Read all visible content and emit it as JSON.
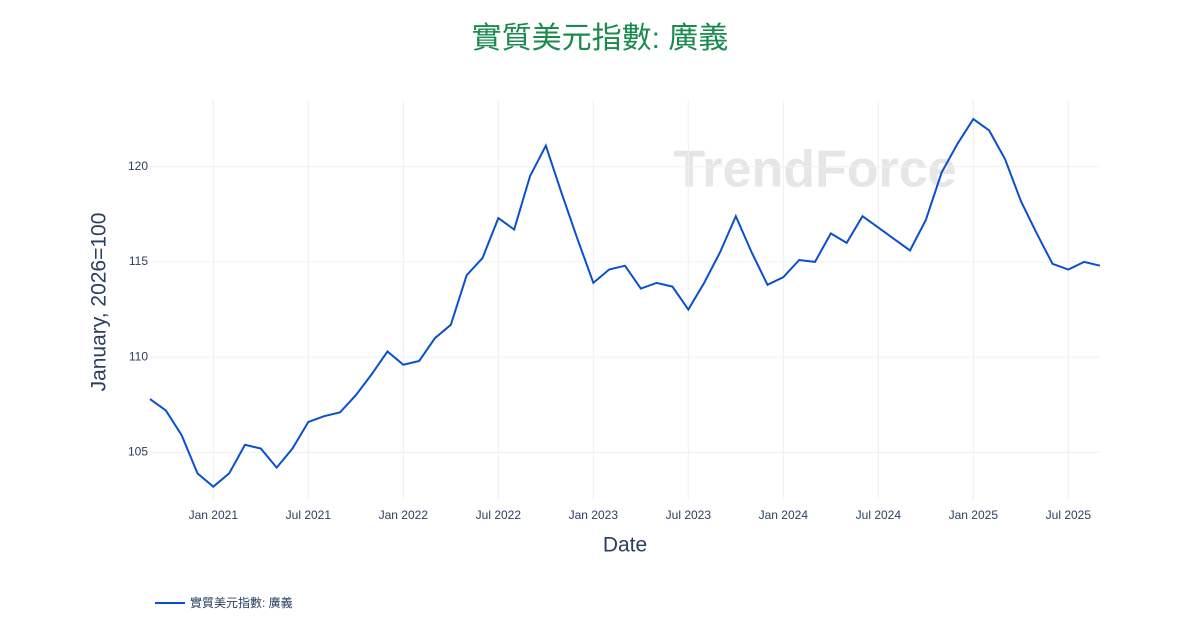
{
  "chart_data": {
    "type": "line",
    "title": "實質美元指數: 廣義",
    "watermark": "TrendForce",
    "x_label": "Date",
    "y_label": "January, 2026=100",
    "x": [
      "2020-09",
      "2020-10",
      "2020-11",
      "2020-12",
      "2021-01",
      "2021-02",
      "2021-03",
      "2021-04",
      "2021-05",
      "2021-06",
      "2021-07",
      "2021-08",
      "2021-09",
      "2021-10",
      "2021-11",
      "2021-12",
      "2022-01",
      "2022-02",
      "2022-03",
      "2022-04",
      "2022-05",
      "2022-06",
      "2022-07",
      "2022-08",
      "2022-09",
      "2022-10",
      "2022-11",
      "2022-12",
      "2023-01",
      "2023-02",
      "2023-03",
      "2023-04",
      "2023-05",
      "2023-06",
      "2023-07",
      "2023-08",
      "2023-09",
      "2023-10",
      "2023-11",
      "2023-12",
      "2024-01",
      "2024-02",
      "2024-03",
      "2024-04",
      "2024-05",
      "2024-06",
      "2024-07",
      "2024-08",
      "2024-09",
      "2024-10",
      "2024-11",
      "2024-12",
      "2025-01",
      "2025-02",
      "2025-03",
      "2025-04",
      "2025-05",
      "2025-06",
      "2025-07",
      "2025-08",
      "2025-09"
    ],
    "series": [
      {
        "name": "實質美元指數: 廣義",
        "color": "#0b4fce",
        "values": [
          107.8,
          107.2,
          105.9,
          103.9,
          103.2,
          103.9,
          105.4,
          105.2,
          104.2,
          105.2,
          106.6,
          106.9,
          107.1,
          108.0,
          109.1,
          110.3,
          109.6,
          109.8,
          111.0,
          111.7,
          114.3,
          115.2,
          117.3,
          116.7,
          119.5,
          121.1,
          118.6,
          116.2,
          113.9,
          114.6,
          114.8,
          113.6,
          113.9,
          113.7,
          112.5,
          113.9,
          115.5,
          117.4,
          115.5,
          113.8,
          114.2,
          115.1,
          115.0,
          116.5,
          116.0,
          117.4,
          116.8,
          116.2,
          115.6,
          117.2,
          119.7,
          121.2,
          122.5,
          121.9,
          120.4,
          118.2,
          116.5,
          114.9,
          114.6,
          115.0,
          114.8
        ]
      }
    ],
    "xlim": [
      "2020-09",
      "2025-09"
    ],
    "xticks": [
      {
        "value": "2021-01",
        "label": "Jan 2021"
      },
      {
        "value": "2021-07",
        "label": "Jul 2021"
      },
      {
        "value": "2022-01",
        "label": "Jan 2022"
      },
      {
        "value": "2022-07",
        "label": "Jul 2022"
      },
      {
        "value": "2023-01",
        "label": "Jan 2023"
      },
      {
        "value": "2023-07",
        "label": "Jul 2023"
      },
      {
        "value": "2024-01",
        "label": "Jan 2024"
      },
      {
        "value": "2024-07",
        "label": "Jul 2024"
      },
      {
        "value": "2025-01",
        "label": "Jan 2025"
      },
      {
        "value": "2025-07",
        "label": "Jul 2025"
      }
    ],
    "ylim": [
      102.5,
      123.5
    ],
    "yticks": [
      105,
      110,
      115,
      120
    ],
    "grid": true
  }
}
